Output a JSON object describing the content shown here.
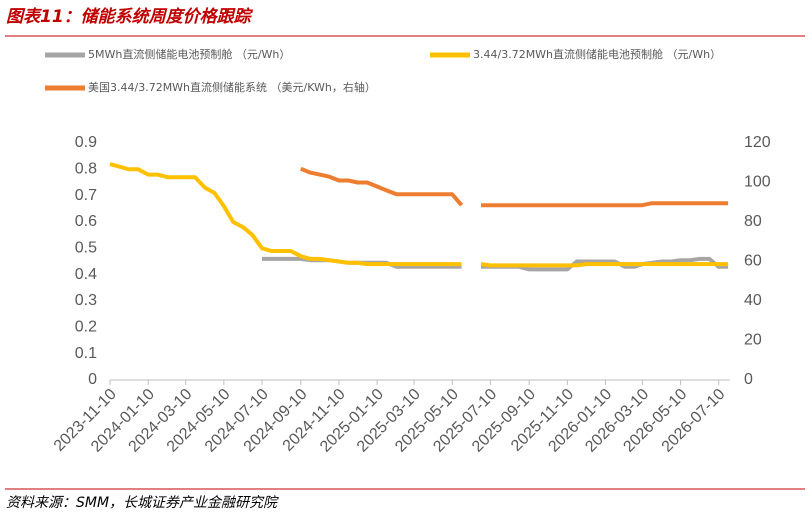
{
  "chart_data": {
    "type": "line",
    "title": "图表11：储能系统周度价格跟踪",
    "source": "资料来源：SMM，长城证券产业金融研究院",
    "x": [
      "2023-11-10",
      "2023-11-25",
      "2023-12-10",
      "2023-12-25",
      "2024-01-10",
      "2024-01-25",
      "2024-02-10",
      "2024-02-25",
      "2024-03-10",
      "2024-03-25",
      "2024-04-10",
      "2024-04-25",
      "2024-05-10",
      "2024-05-25",
      "2024-06-10",
      "2024-06-25",
      "2024-07-10",
      "2024-07-25",
      "2024-08-10",
      "2024-08-25",
      "2024-09-10",
      "2024-09-25",
      "2024-10-10",
      "2024-10-25",
      "2024-11-10",
      "2024-11-25",
      "2024-12-10",
      "2024-12-25",
      "2025-01-10",
      "2025-01-25",
      "2025-02-10",
      "2025-02-25",
      "2025-03-10",
      "2025-03-25",
      "2025-04-10",
      "2025-04-25",
      "2025-05-10",
      "2025-05-25",
      "2025-06-10",
      "2025-06-25",
      "2025-07-10",
      "2025-07-25",
      "2025-08-10",
      "2025-08-25",
      "2025-09-10",
      "2025-09-25",
      "2025-10-10",
      "2025-10-25",
      "2025-11-10",
      "2025-11-25",
      "2025-12-10",
      "2025-12-25",
      "2026-01-10",
      "2026-01-25",
      "2026-02-10",
      "2026-02-25",
      "2026-03-10",
      "2026-03-25",
      "2026-04-10",
      "2026-04-25",
      "2026-05-10",
      "2026-05-25",
      "2026-06-10",
      "2026-06-25",
      "2026-07-10",
      "2026-07-25"
    ],
    "series": [
      {
        "name": "5MWh直流侧储能电池预制舱 （元/Wh）",
        "color": "#a5a5a5",
        "values": [
          null,
          null,
          null,
          null,
          null,
          null,
          null,
          null,
          null,
          null,
          null,
          null,
          null,
          null,
          null,
          null,
          0.46,
          0.46,
          0.46,
          0.46,
          0.46,
          0.455,
          0.455,
          0.455,
          0.45,
          0.445,
          0.445,
          0.445,
          0.445,
          0.445,
          0.43,
          0.43,
          0.43,
          0.43,
          0.43,
          0.43,
          0.43,
          0.43,
          null,
          0.43,
          0.43,
          0.43,
          0.43,
          0.43,
          0.42,
          0.42,
          0.42,
          0.42,
          0.42,
          0.45,
          0.45,
          0.45,
          0.45,
          0.45,
          0.43,
          0.43,
          0.44,
          0.445,
          0.45,
          0.45,
          0.455,
          0.455,
          0.46,
          0.46,
          0.43,
          0.43
        ]
      },
      {
        "name": "3.44/3.72MWh直流侧储能电池预制舱 （元/Wh）",
        "color": "#ffc000",
        "values": [
          0.82,
          0.81,
          0.8,
          0.8,
          0.78,
          0.78,
          0.77,
          0.77,
          0.77,
          0.77,
          0.73,
          0.71,
          0.66,
          0.6,
          0.58,
          0.55,
          0.5,
          0.49,
          0.49,
          0.49,
          0.47,
          0.46,
          0.46,
          0.455,
          0.45,
          0.445,
          0.445,
          0.44,
          0.44,
          0.44,
          0.44,
          0.44,
          0.44,
          0.44,
          0.44,
          0.44,
          0.44,
          0.44,
          null,
          0.44,
          0.435,
          0.435,
          0.435,
          0.435,
          0.435,
          0.435,
          0.435,
          0.435,
          0.435,
          0.435,
          0.44,
          0.44,
          0.44,
          0.44,
          0.44,
          0.44,
          0.44,
          0.44,
          0.44,
          0.44,
          0.44,
          0.44,
          0.44,
          0.44,
          0.44,
          0.44
        ]
      },
      {
        "name": "美国3.44/3.72MWh直流侧储能系统 （美元/KWh，右轴）",
        "color": "#ed7d31",
        "axis": "y2",
        "values": [
          null,
          null,
          null,
          null,
          null,
          null,
          null,
          null,
          null,
          null,
          null,
          null,
          null,
          null,
          null,
          null,
          null,
          null,
          null,
          null,
          107,
          105,
          104,
          103,
          101,
          101,
          100,
          100,
          98,
          96,
          94,
          94,
          94,
          94,
          94,
          94,
          94,
          88.5,
          null,
          88.5,
          88.5,
          88.5,
          88.5,
          88.5,
          88.5,
          88.5,
          88.5,
          88.5,
          88.5,
          88.5,
          88.5,
          88.5,
          88.5,
          88.5,
          88.5,
          88.5,
          88.5,
          89.5,
          89.5,
          89.5,
          89.5,
          89.5,
          89.5,
          89.5,
          89.5,
          89.5
        ]
      }
    ],
    "xlim": [
      "2023-11-10",
      "2026-07-28"
    ],
    "xticks": [
      "2023-11-10",
      "2024-01-10",
      "2024-03-10",
      "2024-05-10",
      "2024-07-10",
      "2024-09-10",
      "2024-11-10",
      "2025-01-10",
      "2025-03-10",
      "2025-05-10",
      "2025-07-10",
      "2025-09-10",
      "2025-11-10",
      "2026-01-10",
      "2026-03-10",
      "2026-05-10",
      "2026-07-10"
    ],
    "ylim": [
      0,
      0.9
    ],
    "yticks": [
      0,
      0.1,
      0.2,
      0.3,
      0.4,
      0.5,
      0.6,
      0.7,
      0.8,
      0.9
    ],
    "y2lim": [
      0,
      120
    ],
    "y2ticks": [
      0,
      20,
      40,
      60,
      80,
      100,
      120
    ],
    "grid": false
  }
}
